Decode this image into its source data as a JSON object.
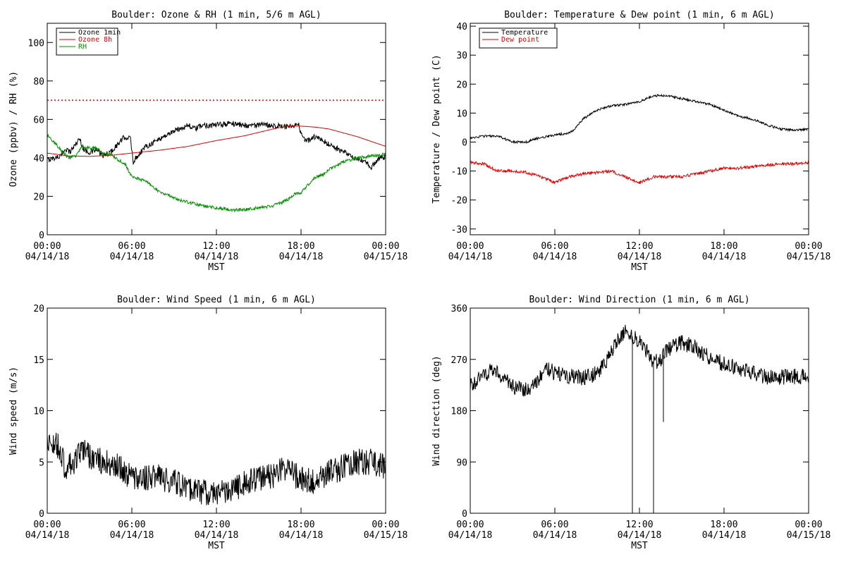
{
  "chart_data": [
    {
      "id": "ozone",
      "type": "line",
      "title": "Boulder: Ozone & RH (1 min, 5/6 m AGL)",
      "xlabel": "MST",
      "ylabel": "Ozone (ppbv) / RH (%)",
      "xlim": [
        "2018-04-14 00:00",
        "2018-04-15 00:00"
      ],
      "ylim": [
        0,
        110
      ],
      "xticks": [
        [
          "00:00",
          "04/14/18"
        ],
        [
          "06:00",
          "04/14/18"
        ],
        [
          "12:00",
          "04/14/18"
        ],
        [
          "18:00",
          "04/14/18"
        ],
        [
          "00:00",
          "04/15/18"
        ]
      ],
      "yticks": [
        "0",
        "20",
        "40",
        "60",
        "80",
        "100"
      ],
      "grid": false,
      "legend": "top-left",
      "reference_line": {
        "y": 70,
        "color": "#e00000",
        "style": "dotted"
      },
      "series": [
        {
          "name": "Ozone 1min",
          "color": "#000000",
          "noise": 1.5,
          "points": [
            [
              0,
              39
            ],
            [
              0.5,
              40
            ],
            [
              1,
              41
            ],
            [
              1.3,
              45
            ],
            [
              1.6,
              43
            ],
            [
              2,
              47
            ],
            [
              2.3,
              50
            ],
            [
              2.6,
              44
            ],
            [
              3,
              43
            ],
            [
              3.5,
              44
            ],
            [
              4,
              41
            ],
            [
              4.5,
              43
            ],
            [
              5,
              47
            ],
            [
              5.5,
              51
            ],
            [
              5.9,
              50
            ],
            [
              6.1,
              38
            ],
            [
              6.5,
              42
            ],
            [
              7,
              46
            ],
            [
              8,
              50
            ],
            [
              9,
              54
            ],
            [
              10,
              57
            ],
            [
              10.5,
              55
            ],
            [
              11,
              57
            ],
            [
              12,
              57
            ],
            [
              13,
              58
            ],
            [
              14,
              57
            ],
            [
              15,
              57
            ],
            [
              16,
              57
            ],
            [
              17,
              56
            ],
            [
              17.5,
              56
            ],
            [
              17.8,
              58
            ],
            [
              18.1,
              50
            ],
            [
              18.5,
              49
            ],
            [
              19,
              51
            ],
            [
              20,
              47
            ],
            [
              20.5,
              45
            ],
            [
              21,
              43
            ],
            [
              21.5,
              41
            ],
            [
              22,
              39
            ],
            [
              22.5,
              38
            ],
            [
              23,
              35
            ],
            [
              23.5,
              40
            ],
            [
              24,
              40
            ]
          ]
        },
        {
          "name": "Ozone 8h",
          "color": "#e00000",
          "noise": 0,
          "points": [
            [
              0,
              42.5
            ],
            [
              1.5,
              41
            ],
            [
              3,
              40.8
            ],
            [
              4.5,
              41.3
            ],
            [
              6,
              42.5
            ],
            [
              8,
              44
            ],
            [
              10,
              46
            ],
            [
              12,
              49
            ],
            [
              14,
              51.5
            ],
            [
              16,
              55
            ],
            [
              17,
              56.5
            ],
            [
              18,
              56.5
            ],
            [
              19,
              56
            ],
            [
              20,
              55
            ],
            [
              22,
              51
            ],
            [
              23,
              48.5
            ],
            [
              24,
              46
            ]
          ]
        },
        {
          "name": "RH",
          "color": "#009000",
          "noise": 0.8,
          "points": [
            [
              0,
              52
            ],
            [
              0.5,
              48
            ],
            [
              1,
              44
            ],
            [
              1.5,
              40
            ],
            [
              2,
              41
            ],
            [
              2.5,
              46
            ],
            [
              3,
              45
            ],
            [
              3.5,
              45
            ],
            [
              4,
              42
            ],
            [
              4.5,
              42
            ],
            [
              5,
              39
            ],
            [
              5.5,
              37
            ],
            [
              6,
              30
            ],
            [
              6.5,
              29
            ],
            [
              7,
              28
            ],
            [
              7.5,
              25
            ],
            [
              8,
              22
            ],
            [
              8.5,
              21
            ],
            [
              9,
              19
            ],
            [
              10,
              17
            ],
            [
              11,
              15
            ],
            [
              12,
              14
            ],
            [
              13,
              13
            ],
            [
              14,
              13
            ],
            [
              15,
              14
            ],
            [
              16,
              15
            ],
            [
              17,
              18
            ],
            [
              17.5,
              21
            ],
            [
              18,
              22
            ],
            [
              18.5,
              26
            ],
            [
              19,
              30
            ],
            [
              19.5,
              31
            ],
            [
              20,
              34
            ],
            [
              21,
              38
            ],
            [
              22,
              40
            ],
            [
              23,
              41
            ],
            [
              24,
              42
            ]
          ]
        }
      ]
    },
    {
      "id": "temp",
      "type": "line",
      "title": "Boulder: Temperature & Dew point (1 min, 6 m AGL)",
      "xlabel": "MST",
      "ylabel": "Temperature / Dew point (C)",
      "xlim": [
        "2018-04-14 00:00",
        "2018-04-15 00:00"
      ],
      "ylim": [
        -32,
        41
      ],
      "xticks": [
        [
          "00:00",
          "04/14/18"
        ],
        [
          "06:00",
          "04/14/18"
        ],
        [
          "12:00",
          "04/14/18"
        ],
        [
          "18:00",
          "04/14/18"
        ],
        [
          "00:00",
          "04/15/18"
        ]
      ],
      "yticks": [
        "-30",
        "-20",
        "-10",
        "0",
        "10",
        "20",
        "30",
        "40"
      ],
      "grid": false,
      "legend": "top-left",
      "series": [
        {
          "name": "Temperature",
          "color": "#000000",
          "noise": 0.4,
          "points": [
            [
              0,
              1.5
            ],
            [
              1,
              2
            ],
            [
              2,
              2
            ],
            [
              2.5,
              1
            ],
            [
              3,
              0
            ],
            [
              3.5,
              0
            ],
            [
              4,
              0
            ],
            [
              4.5,
              1
            ],
            [
              5,
              1.5
            ],
            [
              6,
              2.5
            ],
            [
              7,
              3
            ],
            [
              7.5,
              5
            ],
            [
              8,
              8
            ],
            [
              9,
              11
            ],
            [
              10,
              12.5
            ],
            [
              11,
              13
            ],
            [
              12,
              14
            ],
            [
              13,
              16
            ],
            [
              14,
              16
            ],
            [
              15,
              15
            ],
            [
              16,
              14
            ],
            [
              17,
              13
            ],
            [
              18,
              11
            ],
            [
              19,
              9
            ],
            [
              20,
              8
            ],
            [
              21,
              6
            ],
            [
              22,
              4.5
            ],
            [
              23,
              4
            ],
            [
              24,
              4.5
            ]
          ]
        },
        {
          "name": "Dew point",
          "color": "#e00000",
          "noise": 0.5,
          "points": [
            [
              0,
              -7
            ],
            [
              1,
              -7.5
            ],
            [
              1.5,
              -9
            ],
            [
              2,
              -10
            ],
            [
              3,
              -10
            ],
            [
              4,
              -10.5
            ],
            [
              5,
              -12
            ],
            [
              6,
              -14
            ],
            [
              6.5,
              -13
            ],
            [
              7,
              -12
            ],
            [
              8,
              -11
            ],
            [
              9,
              -10.5
            ],
            [
              10,
              -10
            ],
            [
              11,
              -12
            ],
            [
              12,
              -14
            ],
            [
              12.5,
              -13
            ],
            [
              13,
              -12
            ],
            [
              14,
              -12
            ],
            [
              15,
              -12
            ],
            [
              16,
              -11
            ],
            [
              17,
              -10
            ],
            [
              18,
              -9
            ],
            [
              19,
              -9
            ],
            [
              20,
              -8.5
            ],
            [
              21,
              -8
            ],
            [
              22,
              -7.5
            ],
            [
              23,
              -7.5
            ],
            [
              24,
              -7
            ]
          ]
        }
      ]
    },
    {
      "id": "wspd",
      "type": "line",
      "title": "Boulder: Wind Speed (1 min, 6 m AGL)",
      "xlabel": "MST",
      "ylabel": "Wind speed (m/s)",
      "xlim": [
        "2018-04-14 00:00",
        "2018-04-15 00:00"
      ],
      "ylim": [
        0,
        20
      ],
      "xticks": [
        [
          "00:00",
          "04/14/18"
        ],
        [
          "06:00",
          "04/14/18"
        ],
        [
          "12:00",
          "04/14/18"
        ],
        [
          "18:00",
          "04/14/18"
        ],
        [
          "00:00",
          "04/15/18"
        ]
      ],
      "yticks": [
        "0",
        "5",
        "10",
        "15",
        "20"
      ],
      "grid": false,
      "legend": "none",
      "series": [
        {
          "name": "",
          "color": "#000000",
          "noise": 1.3,
          "points": [
            [
              0,
              7
            ],
            [
              0.5,
              7
            ],
            [
              1,
              6
            ],
            [
              1.3,
              4
            ],
            [
              1.6,
              5
            ],
            [
              2,
              5
            ],
            [
              2.5,
              6.5
            ],
            [
              3,
              5.5
            ],
            [
              4,
              5
            ],
            [
              5,
              4.5
            ],
            [
              6,
              3.5
            ],
            [
              7,
              3.5
            ],
            [
              8,
              3.5
            ],
            [
              9,
              3
            ],
            [
              10,
              2.5
            ],
            [
              11,
              2
            ],
            [
              12,
              2
            ],
            [
              13,
              2
            ],
            [
              14,
              3
            ],
            [
              15,
              3.5
            ],
            [
              16,
              3.5
            ],
            [
              16.5,
              4.5
            ],
            [
              17,
              4
            ],
            [
              18,
              3.5
            ],
            [
              19,
              3
            ],
            [
              20,
              4
            ],
            [
              21,
              4.5
            ],
            [
              22,
              5
            ],
            [
              23,
              5
            ],
            [
              24,
              4.5
            ]
          ]
        }
      ]
    },
    {
      "id": "wdir",
      "type": "line",
      "title": "Boulder: Wind Direction (1 min, 6 m AGL)",
      "xlabel": "MST",
      "ylabel": "Wind direction (deg)",
      "xlim": [
        "2018-04-14 00:00",
        "2018-04-15 00:00"
      ],
      "ylim": [
        0,
        360
      ],
      "xticks": [
        [
          "00:00",
          "04/14/18"
        ],
        [
          "06:00",
          "04/14/18"
        ],
        [
          "12:00",
          "04/14/18"
        ],
        [
          "18:00",
          "04/14/18"
        ],
        [
          "00:00",
          "04/15/18"
        ]
      ],
      "yticks": [
        "0",
        "90",
        "180",
        "270",
        "360"
      ],
      "grid": false,
      "legend": "none",
      "series": [
        {
          "name": "",
          "color": "#000000",
          "noise": 14,
          "points": [
            [
              0,
              225
            ],
            [
              0.5,
              232
            ],
            [
              1,
              243
            ],
            [
              1.5,
              250
            ],
            [
              2,
              245
            ],
            [
              2.5,
              235
            ],
            [
              3,
              222
            ],
            [
              4,
              218
            ],
            [
              4.5,
              222
            ],
            [
              5,
              242
            ],
            [
              5.5,
              255
            ],
            [
              6,
              245
            ],
            [
              7,
              240
            ],
            [
              8,
              238
            ],
            [
              9,
              245
            ],
            [
              9.5,
              260
            ],
            [
              10,
              285
            ],
            [
              10.5,
              305
            ],
            [
              11,
              320
            ],
            [
              11.5,
              310
            ],
            [
              12,
              300
            ],
            [
              12.5,
              285
            ],
            [
              13,
              265
            ],
            [
              13.5,
              270
            ],
            [
              14,
              288
            ],
            [
              15,
              300
            ],
            [
              16,
              290
            ],
            [
              17,
              272
            ],
            [
              18,
              262
            ],
            [
              19,
              255
            ],
            [
              20,
              245
            ],
            [
              21,
              240
            ],
            [
              22,
              238
            ],
            [
              23,
              240
            ],
            [
              24,
              240
            ]
          ]
        }
      ],
      "spikes": [
        [
          11.5,
          0
        ],
        [
          13,
          0
        ],
        [
          13.7,
          160
        ]
      ]
    }
  ]
}
